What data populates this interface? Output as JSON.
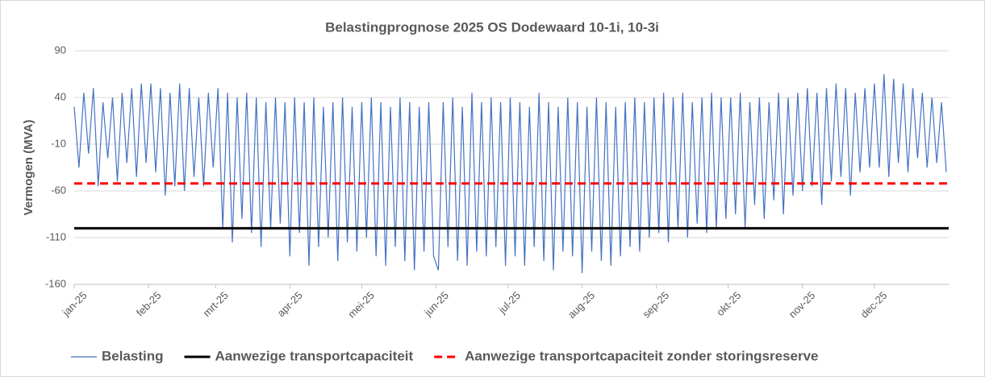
{
  "chart_data": {
    "type": "line",
    "title": "Belastingprognose 2025 OS Dodewaard 10-1i, 10-3i",
    "ylabel": "Vermogen (MVA)",
    "xlim": [
      0,
      365
    ],
    "xticks": [
      {
        "value": 0,
        "label": "jan-25"
      },
      {
        "value": 31,
        "label": "feb-25"
      },
      {
        "value": 59,
        "label": "mrt-25"
      },
      {
        "value": 90,
        "label": "apr-25"
      },
      {
        "value": 120,
        "label": "mei-25"
      },
      {
        "value": 151,
        "label": "jun-25"
      },
      {
        "value": 181,
        "label": "jul-25"
      },
      {
        "value": 212,
        "label": "aug-25"
      },
      {
        "value": 243,
        "label": "sep-25"
      },
      {
        "value": 273,
        "label": "okt-25"
      },
      {
        "value": 304,
        "label": "nov-25"
      },
      {
        "value": 334,
        "label": "dec-25"
      }
    ],
    "ylim": [
      -160,
      90
    ],
    "yticks": [
      -160,
      -110,
      -60,
      -10,
      40,
      90
    ],
    "grid": true,
    "legend": "bottom",
    "series": [
      {
        "name": "Belasting",
        "color": "#4472c4",
        "width": 1.2,
        "dash": false,
        "x": [
          0,
          2,
          4,
          6,
          8,
          10,
          12,
          14,
          16,
          18,
          20,
          22,
          24,
          26,
          28,
          30,
          32,
          34,
          36,
          38,
          40,
          42,
          44,
          46,
          48,
          50,
          52,
          54,
          56,
          58,
          60,
          62,
          64,
          66,
          68,
          70,
          72,
          74,
          76,
          78,
          80,
          82,
          84,
          86,
          88,
          90,
          92,
          94,
          96,
          98,
          100,
          102,
          104,
          106,
          108,
          110,
          112,
          114,
          116,
          118,
          120,
          122,
          124,
          126,
          128,
          130,
          132,
          134,
          136,
          138,
          140,
          142,
          144,
          146,
          148,
          150,
          152,
          154,
          156,
          158,
          160,
          162,
          164,
          166,
          168,
          170,
          172,
          174,
          176,
          178,
          180,
          182,
          184,
          186,
          188,
          190,
          192,
          194,
          196,
          198,
          200,
          202,
          204,
          206,
          208,
          210,
          212,
          214,
          216,
          218,
          220,
          222,
          224,
          226,
          228,
          230,
          232,
          234,
          236,
          238,
          240,
          242,
          244,
          246,
          248,
          250,
          252,
          254,
          256,
          258,
          260,
          262,
          264,
          266,
          268,
          270,
          272,
          274,
          276,
          278,
          280,
          282,
          284,
          286,
          288,
          290,
          292,
          294,
          296,
          298,
          300,
          302,
          304,
          306,
          308,
          310,
          312,
          314,
          316,
          318,
          320,
          322,
          324,
          326,
          328,
          330,
          332,
          334,
          336,
          338,
          340,
          342,
          344,
          346,
          348,
          350,
          352,
          354,
          356,
          358,
          360,
          362,
          364
        ],
        "values": [
          30,
          -35,
          45,
          -20,
          50,
          -55,
          35,
          -25,
          40,
          -50,
          45,
          -30,
          50,
          -45,
          55,
          -30,
          55,
          -40,
          50,
          -65,
          45,
          -55,
          55,
          -60,
          50,
          -45,
          40,
          -55,
          45,
          -35,
          50,
          -100,
          45,
          -115,
          40,
          -90,
          45,
          -105,
          40,
          -120,
          35,
          -100,
          40,
          -95,
          35,
          -130,
          40,
          -105,
          35,
          -140,
          40,
          -120,
          30,
          -110,
          35,
          -135,
          40,
          -115,
          30,
          -125,
          35,
          -110,
          40,
          -130,
          35,
          -140,
          30,
          -120,
          40,
          -135,
          35,
          -145,
          30,
          -125,
          35,
          -130,
          -145,
          35,
          -120,
          40,
          -135,
          30,
          -140,
          45,
          -125,
          35,
          -130,
          40,
          -120,
          35,
          -140,
          40,
          -130,
          35,
          -140,
          30,
          -120,
          45,
          -135,
          35,
          -145,
          30,
          -125,
          40,
          -130,
          35,
          -148,
          30,
          -125,
          40,
          -135,
          35,
          -140,
          30,
          -130,
          35,
          -120,
          40,
          -125,
          35,
          -110,
          40,
          -105,
          45,
          -115,
          40,
          -100,
          45,
          -110,
          35,
          -95,
          40,
          -105,
          45,
          -100,
          40,
          -90,
          40,
          -85,
          45,
          -100,
          35,
          -75,
          40,
          -90,
          35,
          -70,
          45,
          -85,
          40,
          -65,
          45,
          -60,
          50,
          -55,
          45,
          -75,
          50,
          -50,
          55,
          -45,
          50,
          -65,
          45,
          -40,
          50,
          -35,
          55,
          -35,
          65,
          -45,
          60,
          -30,
          55,
          -40,
          50,
          -25,
          45,
          -35,
          40,
          -30,
          35,
          -40
        ]
      },
      {
        "name": "Aanwezige transportcapaciteit",
        "color": "#000000",
        "width": 3,
        "dash": false,
        "x": [
          0,
          365
        ],
        "values": [
          -100,
          -100
        ]
      },
      {
        "name": "Aanwezige transportcapaciteit zonder storingsreserve",
        "color": "#ff0000",
        "width": 3,
        "dash": true,
        "x": [
          0,
          365
        ],
        "values": [
          -52,
          -52
        ]
      }
    ]
  }
}
